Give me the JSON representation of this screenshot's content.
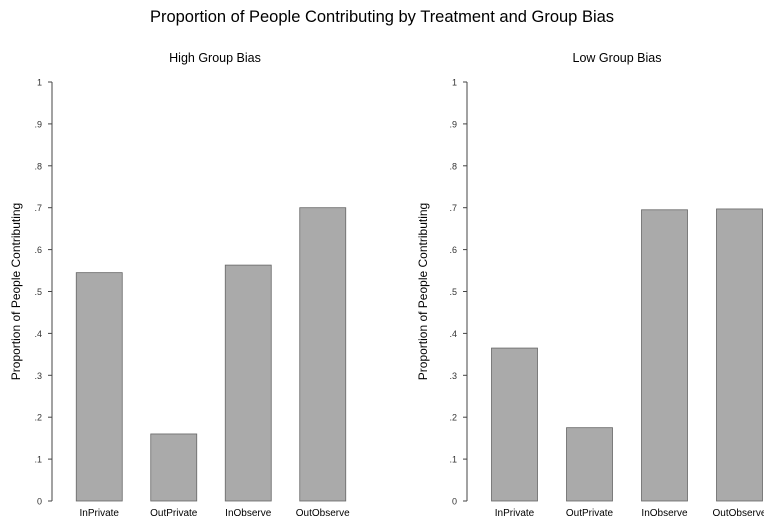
{
  "title": "Proportion of People Contributing by Treatment and Group Bias",
  "chart_data": [
    {
      "type": "bar",
      "title": "High Group Bias",
      "ylabel": "Proportion of People Contributing",
      "xlabel": "",
      "ylim": [
        0,
        1
      ],
      "yticks": [
        "0",
        ".1",
        ".2",
        ".3",
        ".4",
        ".5",
        ".6",
        ".7",
        ".8",
        ".9",
        "1"
      ],
      "categories": [
        "InPrivate",
        "OutPrivate",
        "InObserve",
        "OutObserve"
      ],
      "values": [
        0.545,
        0.16,
        0.563,
        0.7
      ],
      "bar_color": "#aaaaaa",
      "grid": false
    },
    {
      "type": "bar",
      "title": "Low Group Bias",
      "ylabel": "Proportion of People Contributing",
      "xlabel": "",
      "ylim": [
        0,
        1
      ],
      "yticks": [
        "0",
        ".1",
        ".2",
        ".3",
        ".4",
        ".5",
        ".6",
        ".7",
        ".8",
        ".9",
        "1"
      ],
      "categories": [
        "InPrivate",
        "OutPrivate",
        "InObserve",
        "OutObserve"
      ],
      "values": [
        0.365,
        0.175,
        0.695,
        0.697
      ],
      "bar_color": "#aaaaaa",
      "grid": false
    }
  ]
}
